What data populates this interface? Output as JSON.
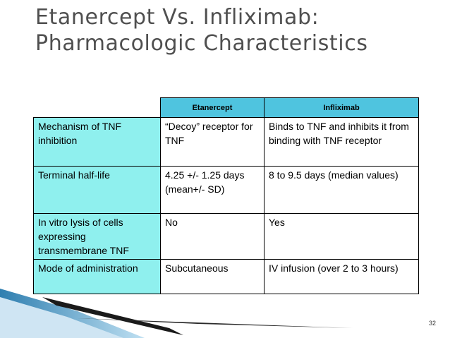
{
  "slide": {
    "title_line1": "Etanercept Vs. Infliximab:",
    "title_line2": "Pharmacologic Characteristics",
    "page_number": "32"
  },
  "table": {
    "header": {
      "corner": "",
      "col1": "Etanercept",
      "col2": "Infliximab"
    },
    "rows": [
      {
        "label": "Mechanism of TNF inhibition",
        "etanercept": "“Decoy” receptor for TNF",
        "infliximab": "Binds to TNF and inhibits it from binding with TNF receptor"
      },
      {
        "label": "Terminal half-life",
        "etanercept": "4.25 +/- 1.25 days (mean+/- SD)",
        "infliximab": "8 to 9.5 days (median values)"
      },
      {
        "label": "In vitro lysis of cells expressing transmembrane TNF",
        "etanercept": "No",
        "infliximab": "Yes"
      },
      {
        "label": "Mode of administration",
        "etanercept": "Subcutaneous",
        "infliximab": "IV infusion (over 2 to 3 hours)"
      }
    ]
  },
  "colors": {
    "header_fill": "#4fc4df",
    "label_fill": "#8ff0ee",
    "title_text": "#4f4f4f",
    "decoration_blue": "#2f7fb0"
  }
}
